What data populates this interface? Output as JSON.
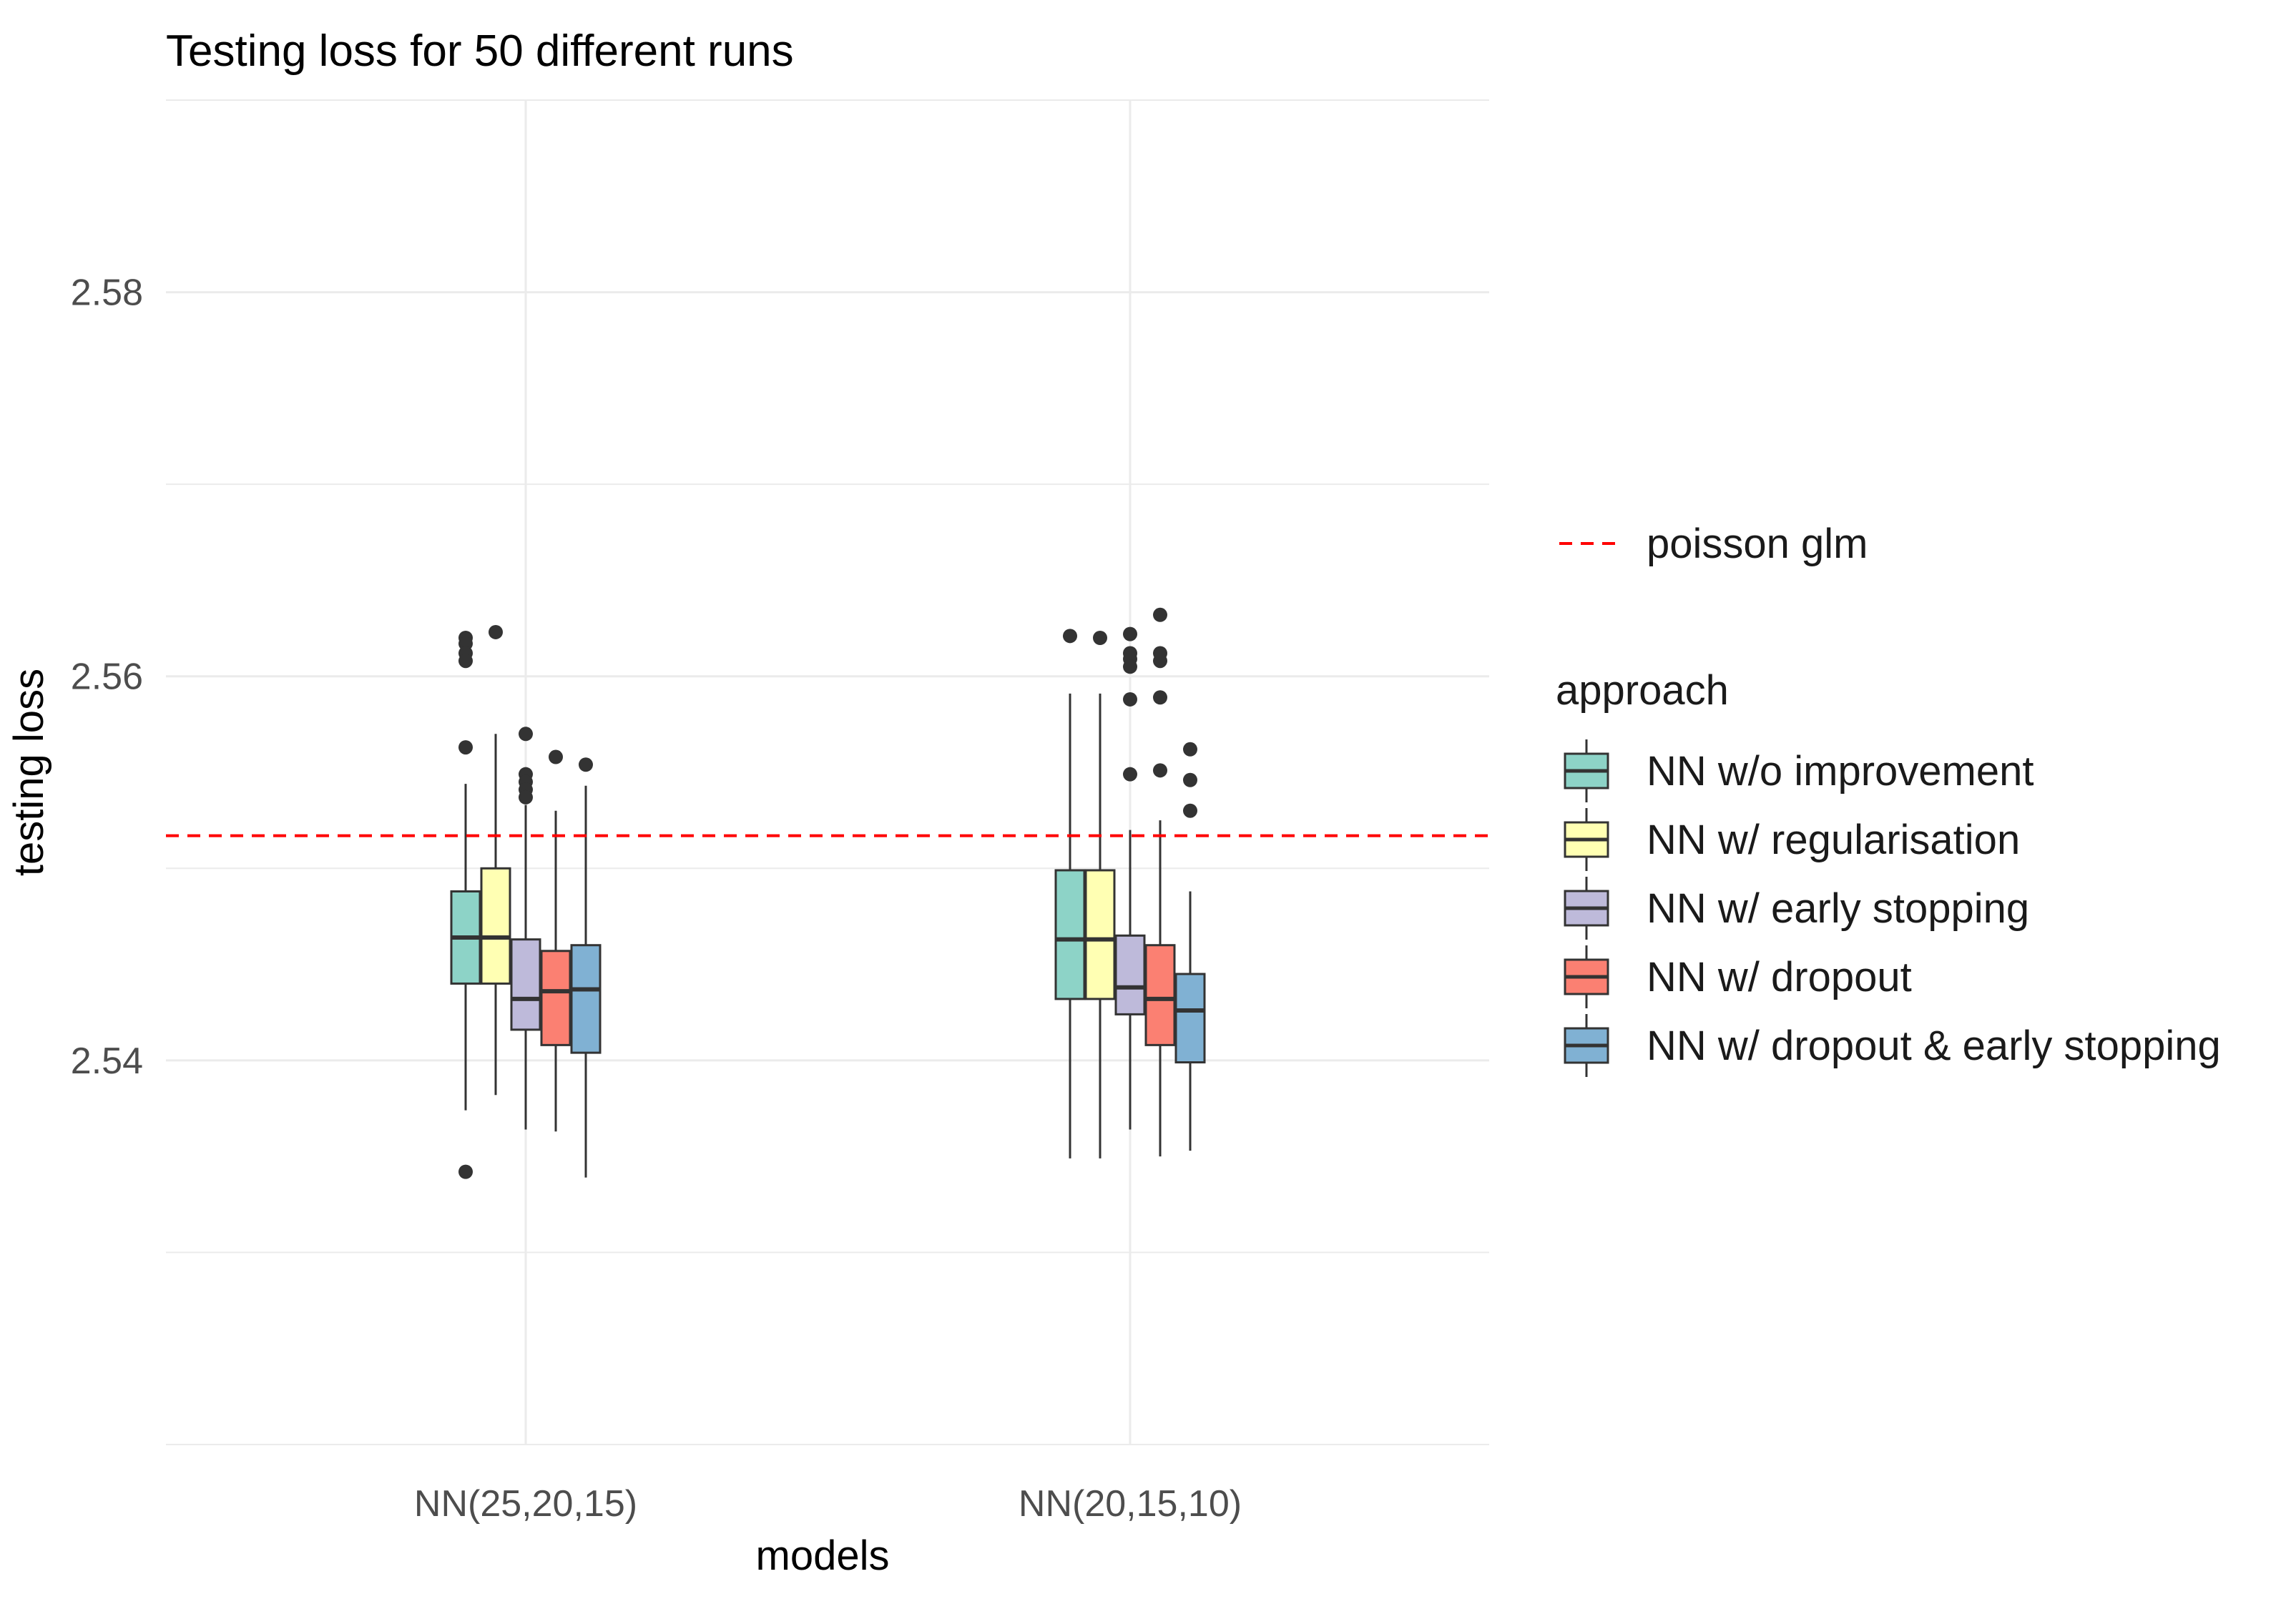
{
  "chart_data": {
    "type": "boxplot",
    "title": "Testing loss for 50 different runs",
    "xlabel": "models",
    "ylabel": "testing loss",
    "categories": [
      "NN(25,20,15)",
      "NN(20,15,10)"
    ],
    "ylim": [
      2.52,
      2.59
    ],
    "y_ticks": [
      2.54,
      2.56,
      2.58
    ],
    "y_tick_labels": [
      "2.54",
      "2.56",
      "2.58"
    ],
    "grid": true,
    "reference_line": {
      "label": "poisson glm",
      "value": 2.5517,
      "color": "#ff0000",
      "style": "dashed"
    },
    "legend_title": "approach",
    "legend_position": "right",
    "series": [
      {
        "name": "NN w/o improvement",
        "color": "#8dd3c7",
        "boxes": [
          {
            "whisker_low": 2.5374,
            "q1": 2.544,
            "median": 2.5464,
            "q3": 2.5488,
            "whisker_high": 2.5544,
            "outliers": [
              2.562,
              2.5617,
              2.5612,
              2.5608,
              2.5563,
              2.5342
            ]
          },
          {
            "whisker_low": 2.5349,
            "q1": 2.5432,
            "median": 2.5463,
            "q3": 2.5499,
            "whisker_high": 2.5591,
            "outliers": [
              2.5621
            ]
          }
        ]
      },
      {
        "name": "NN w/ regularisation",
        "color": "#ffffb3",
        "boxes": [
          {
            "whisker_low": 2.5382,
            "q1": 2.544,
            "median": 2.5464,
            "q3": 2.55,
            "whisker_high": 2.557,
            "outliers": [
              2.5623
            ]
          },
          {
            "whisker_low": 2.5349,
            "q1": 2.5432,
            "median": 2.5463,
            "q3": 2.5499,
            "whisker_high": 2.5591,
            "outliers": [
              2.562
            ]
          }
        ]
      },
      {
        "name": "NN w/ early stopping",
        "color": "#bebada",
        "boxes": [
          {
            "whisker_low": 2.5364,
            "q1": 2.5416,
            "median": 2.5432,
            "q3": 2.5463,
            "whisker_high": 2.5533,
            "outliers": [
              2.557,
              2.5549,
              2.5545,
              2.5541,
              2.5537
            ]
          },
          {
            "whisker_low": 2.5364,
            "q1": 2.5424,
            "median": 2.5438,
            "q3": 2.5465,
            "whisker_high": 2.552,
            "outliers": [
              2.5622,
              2.5612,
              2.5609,
              2.5605,
              2.5588,
              2.5549
            ]
          }
        ]
      },
      {
        "name": "NN w/ dropout",
        "color": "#fb8072",
        "boxes": [
          {
            "whisker_low": 2.5363,
            "q1": 2.5408,
            "median": 2.5436,
            "q3": 2.5457,
            "whisker_high": 2.553,
            "outliers": [
              2.5558
            ]
          },
          {
            "whisker_low": 2.535,
            "q1": 2.5408,
            "median": 2.5432,
            "q3": 2.546,
            "whisker_high": 2.5525,
            "outliers": [
              2.5632,
              2.5612,
              2.5608,
              2.5589,
              2.5551
            ]
          }
        ]
      },
      {
        "name": "NN w/ dropout & early stopping",
        "color": "#80b1d3",
        "boxes": [
          {
            "whisker_low": 2.5339,
            "q1": 2.5404,
            "median": 2.5437,
            "q3": 2.546,
            "whisker_high": 2.5543,
            "outliers": [
              2.5554
            ]
          },
          {
            "whisker_low": 2.5353,
            "q1": 2.5399,
            "median": 2.5426,
            "q3": 2.5445,
            "whisker_high": 2.5488,
            "outliers": [
              2.5562,
              2.5546,
              2.553
            ]
          }
        ]
      }
    ]
  }
}
